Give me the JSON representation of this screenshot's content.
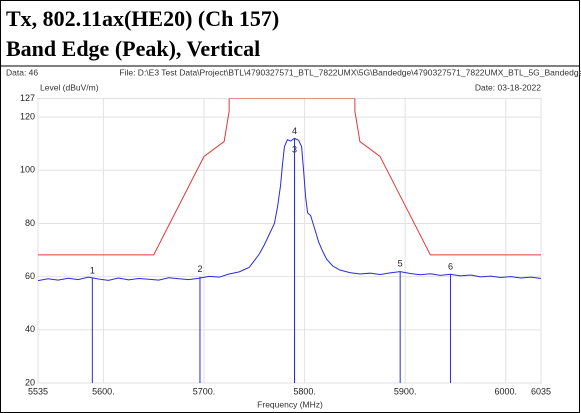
{
  "chart_data": {
    "type": "line",
    "title": "Tx, 802.11ax(HE20) (Ch 157)",
    "subtitle": "Band Edge (Peak), Vertical",
    "annotations": [
      "Data: 46",
      "File: D:\\E3 Test Data\\Project\\BTL\\4790327571_BTL_7822UMX\\5G\\Bandedge\\4790327571_7822UMX_BTL_5G_Bandedge.EM6 (72)",
      "Date: 03-18-2022"
    ],
    "y_label": "Level (dBuV/m)",
    "x_label": "Frequency (MHz)",
    "xlim": [
      5535,
      6035
    ],
    "ylim": [
      20,
      127
    ],
    "xticks": [
      5535,
      {
        "value": 5600,
        "label": "5600."
      },
      {
        "value": 5700,
        "label": "5700."
      },
      {
        "value": 5800,
        "label": "5800."
      },
      {
        "value": 5900,
        "label": "5900."
      },
      {
        "value": 6000,
        "label": "6000."
      },
      6035
    ],
    "yticks": [
      20,
      40,
      60,
      80,
      100,
      120,
      127
    ],
    "grid": true,
    "series": [
      {
        "color": "#2b2bd6",
        "x": [
          5535,
          5545,
          5555,
          5565,
          5575,
          5585,
          5595,
          5605,
          5615,
          5625,
          5635,
          5645,
          5655,
          5665,
          5675,
          5685,
          5695,
          5705,
          5715,
          5725,
          5735,
          5745,
          5750,
          5755,
          5760,
          5765,
          5770,
          5773,
          5776,
          5778,
          5780,
          5783,
          5786,
          5790,
          5794,
          5797,
          5799,
          5801,
          5803,
          5806,
          5810,
          5814,
          5818,
          5822,
          5828,
          5835,
          5845,
          5855,
          5865,
          5875,
          5885,
          5895,
          5905,
          5915,
          5925,
          5935,
          5945,
          5955,
          5965,
          5975,
          5985,
          5995,
          6005,
          6015,
          6025,
          6035
        ],
        "values": [
          58.5,
          59.2,
          58.7,
          59.4,
          58.9,
          59.8,
          59.1,
          58.6,
          59.5,
          58.8,
          59.3,
          59.0,
          58.7,
          59.6,
          59.2,
          58.9,
          59.4,
          60.1,
          59.8,
          61.0,
          61.8,
          63.5,
          66.0,
          68.5,
          72.0,
          76.0,
          80.0,
          86.0,
          94.0,
          102.0,
          109.0,
          111.5,
          111.0,
          112.0,
          111.3,
          109.0,
          100.0,
          90.0,
          84.0,
          83.0,
          78.0,
          73.0,
          69.5,
          66.5,
          64.0,
          62.5,
          61.5,
          61.0,
          61.3,
          60.8,
          61.4,
          61.9,
          61.2,
          60.7,
          61.1,
          60.5,
          60.9,
          60.3,
          60.6,
          59.9,
          60.2,
          59.7,
          60.0,
          59.5,
          59.8,
          59.3
        ]
      },
      {
        "color": "#e03a3a",
        "x": [
          5535,
          5650,
          5700,
          5720,
          5725,
          5725,
          5850,
          5850,
          5855,
          5875,
          5925,
          6035
        ],
        "values": [
          68.2,
          68.2,
          105.2,
          110.8,
          122.2,
          127,
          127,
          122.2,
          110.8,
          105.2,
          68.2,
          68.2
        ]
      }
    ],
    "markers": {
      "color": "#2b2bd6",
      "labels": [
        "1",
        "2",
        "3",
        "4",
        "5",
        "6"
      ],
      "x": [
        5589,
        5696,
        5790,
        5790,
        5895,
        5945
      ],
      "values": [
        59.5,
        60.0,
        105.0,
        112.0,
        62.0,
        61.0
      ]
    }
  }
}
